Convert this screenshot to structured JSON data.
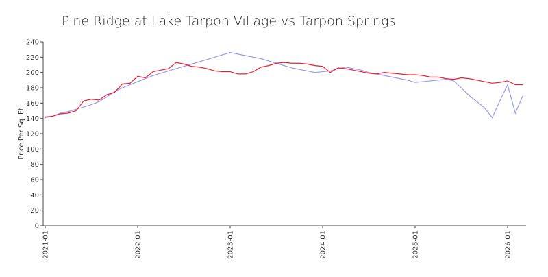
{
  "chart_data": {
    "type": "line",
    "title": "Pine Ridge at Lake Tarpon Village vs Tarpon Springs",
    "ylabel": "Price Per Sq. Ft",
    "x": [
      "2021-01",
      "2021-02",
      "2021-03",
      "2021-04",
      "2021-05",
      "2021-06",
      "2021-07",
      "2021-08",
      "2021-09",
      "2021-10",
      "2021-11",
      "2021-12",
      "2022-01",
      "2022-02",
      "2022-03",
      "2022-04",
      "2022-05",
      "2022-06",
      "2022-07",
      "2022-08",
      "2022-09",
      "2022-10",
      "2022-11",
      "2022-12",
      "2023-01",
      "2023-02",
      "2023-03",
      "2023-04",
      "2023-05",
      "2023-06",
      "2023-07",
      "2023-08",
      "2023-09",
      "2023-10",
      "2023-11",
      "2023-12",
      "2024-01",
      "2024-02",
      "2024-03",
      "2024-04",
      "2024-05",
      "2024-06",
      "2024-07",
      "2024-08",
      "2024-09",
      "2024-10",
      "2024-11",
      "2024-12",
      "2025-01",
      "2025-02",
      "2025-03",
      "2025-04",
      "2025-05",
      "2025-06",
      "2025-07",
      "2025-08",
      "2025-09",
      "2025-10",
      "2025-11",
      "2025-12",
      "2026-01",
      "2026-02",
      "2026-03"
    ],
    "series": [
      {
        "color": "#9999ee",
        "values": [
          141,
          143,
          147,
          149,
          152,
          155,
          158,
          162,
          168,
          175,
          180,
          184,
          188,
          192,
          196,
          199,
          202,
          205,
          208,
          211,
          214,
          217,
          220,
          223,
          226,
          224,
          222,
          220,
          218,
          215,
          212,
          209,
          206,
          204,
          202,
          200,
          201,
          202,
          205,
          207,
          205,
          203,
          200,
          198,
          196,
          194,
          192,
          190,
          187,
          188,
          189,
          190,
          191,
          189,
          180,
          170,
          162,
          154,
          141,
          163,
          184,
          147,
          170
        ]
      },
      {
        "color": "#ee1c2e",
        "values": [
          142,
          143,
          146,
          147,
          150,
          163,
          165,
          164,
          171,
          174,
          185,
          186,
          195,
          193,
          201,
          203,
          205,
          213,
          211,
          208,
          207,
          205,
          202,
          201,
          201,
          198,
          198,
          201,
          207,
          209,
          212,
          213,
          212,
          212,
          211,
          209,
          208,
          200,
          206,
          205,
          203,
          201,
          199,
          198,
          200,
          199,
          198,
          197,
          197,
          196,
          194,
          194,
          192,
          191,
          193,
          192,
          190,
          188,
          186,
          187,
          189,
          184,
          184
        ]
      }
    ],
    "xlim": [
      "2021-01",
      "2026-03"
    ],
    "xticks": [
      "2021-01",
      "2022-01",
      "2023-01",
      "2024-01",
      "2025-01",
      "2026-01"
    ],
    "ylim": [
      0,
      240
    ],
    "yticks": [
      0,
      20,
      40,
      60,
      80,
      100,
      120,
      140,
      160,
      180,
      200,
      220,
      240
    ]
  }
}
